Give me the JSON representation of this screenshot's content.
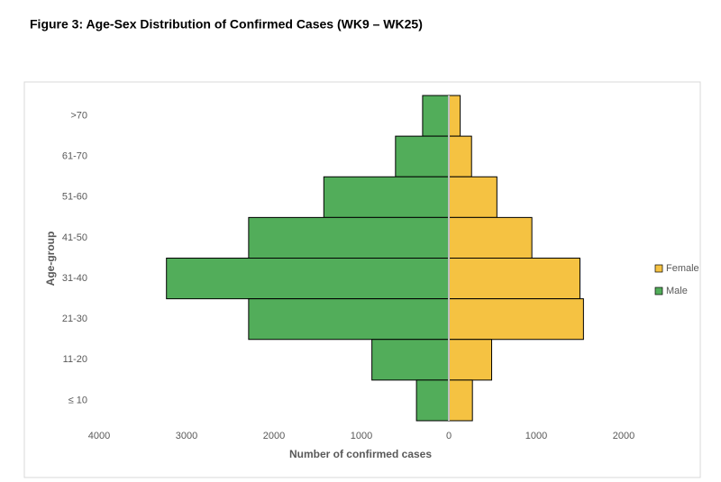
{
  "chart_data": {
    "type": "pyramid",
    "title": "Figure 3: Age-Sex Distribution of Confirmed Cases (WK9 – WK25)",
    "x_label": "Number of confirmed cases",
    "y_label": "Age-group",
    "categories": [
      ">70",
      "61-70",
      "51-60",
      "41-50",
      "31-40",
      "21-30",
      "11-20",
      "≤ 10"
    ],
    "series": [
      {
        "name": "Female",
        "color": "#f5c242",
        "values": [
          130,
          260,
          550,
          950,
          1500,
          1540,
          490,
          270
        ]
      },
      {
        "name": "Male",
        "color": "#52ad5a",
        "values": [
          -300,
          -610,
          -1430,
          -2290,
          -3230,
          -2290,
          -880,
          -370
        ]
      }
    ],
    "xlim": [
      -4000,
      2000
    ],
    "xticks": [
      {
        "value": -4000,
        "label": "4000"
      },
      {
        "value": -3000,
        "label": "3000"
      },
      {
        "value": -2000,
        "label": "2000"
      },
      {
        "value": -1000,
        "label": "1000"
      },
      0,
      1000,
      2000
    ],
    "legend": "right"
  }
}
